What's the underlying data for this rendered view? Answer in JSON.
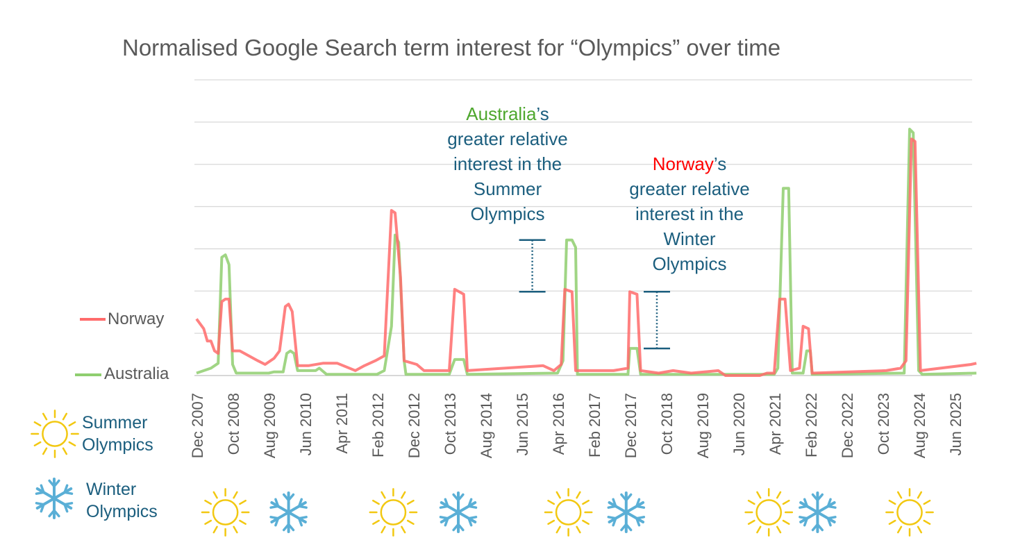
{
  "chart_data": {
    "type": "line",
    "title": "Normalised Google Search term interest for “Olympics” over time",
    "xlabel": "",
    "ylabel": "",
    "ylim": [
      0,
      120
    ],
    "grid": true,
    "x_unit": "months since Dec 2007",
    "xlim": [
      0,
      216
    ],
    "tick_labels": [
      "Dec 2007",
      "Oct 2008",
      "Aug 2009",
      "Jun 2010",
      "Apr 2011",
      "Feb 2012",
      "Dec 2012",
      "Oct 2013",
      "Aug 2014",
      "Jun 2015",
      "Apr 2016",
      "Feb 2017",
      "Dec 2017",
      "Oct 2018",
      "Aug 2019",
      "Jun 2020",
      "Apr 2021",
      "Feb 2022",
      "Dec 2022",
      "Oct 2023",
      "Aug 2024",
      "Jun 2025"
    ],
    "tick_step_months": 10,
    "series": [
      {
        "name": "Norway",
        "color": "#ff6b6b",
        "points": [
          [
            0,
            23
          ],
          [
            2,
            19
          ],
          [
            3,
            14
          ],
          [
            4,
            14
          ],
          [
            5,
            10
          ],
          [
            6,
            9
          ],
          [
            7,
            30
          ],
          [
            8,
            31
          ],
          [
            9,
            31
          ],
          [
            10,
            10
          ],
          [
            12,
            10
          ],
          [
            17,
            6
          ],
          [
            19,
            4.5
          ],
          [
            21.5,
            7
          ],
          [
            23,
            10
          ],
          [
            24.6,
            28
          ],
          [
            25.5,
            29
          ],
          [
            26.5,
            26
          ],
          [
            28,
            4
          ],
          [
            31,
            4
          ],
          [
            35,
            5
          ],
          [
            39,
            5
          ],
          [
            44,
            2
          ],
          [
            46.5,
            4
          ],
          [
            49.5,
            6
          ],
          [
            52,
            8
          ],
          [
            54,
            67
          ],
          [
            55,
            66
          ],
          [
            56.5,
            40
          ],
          [
            57.5,
            6
          ],
          [
            61,
            4.5
          ],
          [
            63,
            2
          ],
          [
            70,
            2
          ],
          [
            71.5,
            35
          ],
          [
            74,
            33
          ],
          [
            75,
            2
          ],
          [
            96,
            4
          ],
          [
            99,
            2
          ],
          [
            101,
            4.5
          ],
          [
            102,
            35
          ],
          [
            104,
            34
          ],
          [
            105,
            2
          ],
          [
            115.5,
            2
          ],
          [
            119.5,
            3
          ],
          [
            120,
            34
          ],
          [
            122,
            33
          ],
          [
            123,
            2
          ],
          [
            128,
            1
          ],
          [
            132,
            2
          ],
          [
            137,
            1
          ],
          [
            144.5,
            2
          ],
          [
            146.5,
            0
          ],
          [
            156,
            0
          ],
          [
            158,
            1
          ],
          [
            160,
            1
          ],
          [
            161.5,
            31
          ],
          [
            163,
            31
          ],
          [
            164.5,
            2
          ],
          [
            167,
            3
          ],
          [
            168,
            20
          ],
          [
            169.5,
            19
          ],
          [
            170.5,
            1
          ],
          [
            191,
            2
          ],
          [
            195,
            3
          ],
          [
            196.5,
            6
          ],
          [
            198,
            96
          ],
          [
            199,
            95
          ],
          [
            200.5,
            2
          ],
          [
            214.5,
            4.5
          ],
          [
            216,
            5
          ]
        ]
      },
      {
        "name": "Australia",
        "color": "#8fce6f",
        "points": [
          [
            0,
            1
          ],
          [
            4,
            3
          ],
          [
            6,
            5
          ],
          [
            7,
            48
          ],
          [
            8,
            49
          ],
          [
            9,
            45
          ],
          [
            10,
            4.5
          ],
          [
            11,
            1
          ],
          [
            20,
            1
          ],
          [
            21.5,
            1.5
          ],
          [
            24,
            1.5
          ],
          [
            25,
            9
          ],
          [
            26,
            10
          ],
          [
            27,
            9
          ],
          [
            28,
            2
          ],
          [
            33,
            2
          ],
          [
            34,
            3
          ],
          [
            36,
            0.5
          ],
          [
            50,
            0.5
          ],
          [
            52,
            2
          ],
          [
            54,
            20
          ],
          [
            55,
            57
          ],
          [
            56,
            54
          ],
          [
            57.5,
            6
          ],
          [
            58,
            0.5
          ],
          [
            70,
            0.5
          ],
          [
            71.5,
            6.5
          ],
          [
            74,
            6.5
          ],
          [
            75,
            0.5
          ],
          [
            100,
            1
          ],
          [
            101.5,
            6
          ],
          [
            102.5,
            55
          ],
          [
            104,
            55
          ],
          [
            105,
            52
          ],
          [
            105.5,
            0.5
          ],
          [
            119.5,
            0.5
          ],
          [
            120,
            11
          ],
          [
            122,
            11
          ],
          [
            123,
            0.5
          ],
          [
            160,
            0.5
          ],
          [
            161,
            3
          ],
          [
            162.5,
            76
          ],
          [
            164,
            76
          ],
          [
            165,
            1
          ],
          [
            168,
            1
          ],
          [
            169,
            10
          ],
          [
            170,
            10
          ],
          [
            170.5,
            0.5
          ],
          [
            196,
            1
          ],
          [
            197.5,
            100
          ],
          [
            198.5,
            98.5
          ],
          [
            200,
            2
          ],
          [
            201,
            0.5
          ],
          [
            216,
            1
          ]
        ]
      }
    ],
    "annotations": [
      {
        "highlight": "Australia",
        "highlight_color": "#4ea72e",
        "rest": "’s",
        "lines": [
          "greater relative",
          "interest in the",
          "Summer",
          "Olympics"
        ],
        "bracket_month": 93,
        "bracket_range": [
          34,
          55
        ]
      },
      {
        "highlight": "Norway",
        "highlight_color": "#ff0000",
        "rest": "’s",
        "lines": [
          "greater relative",
          "interest in the",
          "Winter",
          "Olympics"
        ],
        "bracket_month": 127.5,
        "bracket_range": [
          11,
          34
        ]
      }
    ],
    "events": [
      {
        "type": "summer",
        "month": 8
      },
      {
        "type": "winter",
        "month": 25.5
      },
      {
        "type": "summer",
        "month": 54.5
      },
      {
        "type": "winter",
        "month": 72.5
      },
      {
        "type": "summer",
        "month": 103
      },
      {
        "type": "winter",
        "month": 119
      },
      {
        "type": "summer",
        "month": 158.5
      },
      {
        "type": "winter",
        "month": 172
      },
      {
        "type": "summer",
        "month": 197.5
      }
    ]
  },
  "legend": {
    "summer": [
      "Summer",
      "Olympics"
    ],
    "winter": [
      "Winter",
      "Olympics"
    ]
  },
  "colors": {
    "sun": "#f2c811",
    "snow": "#5aafd6",
    "text": "#1b5e7e",
    "grid": "#d9d9d9"
  }
}
